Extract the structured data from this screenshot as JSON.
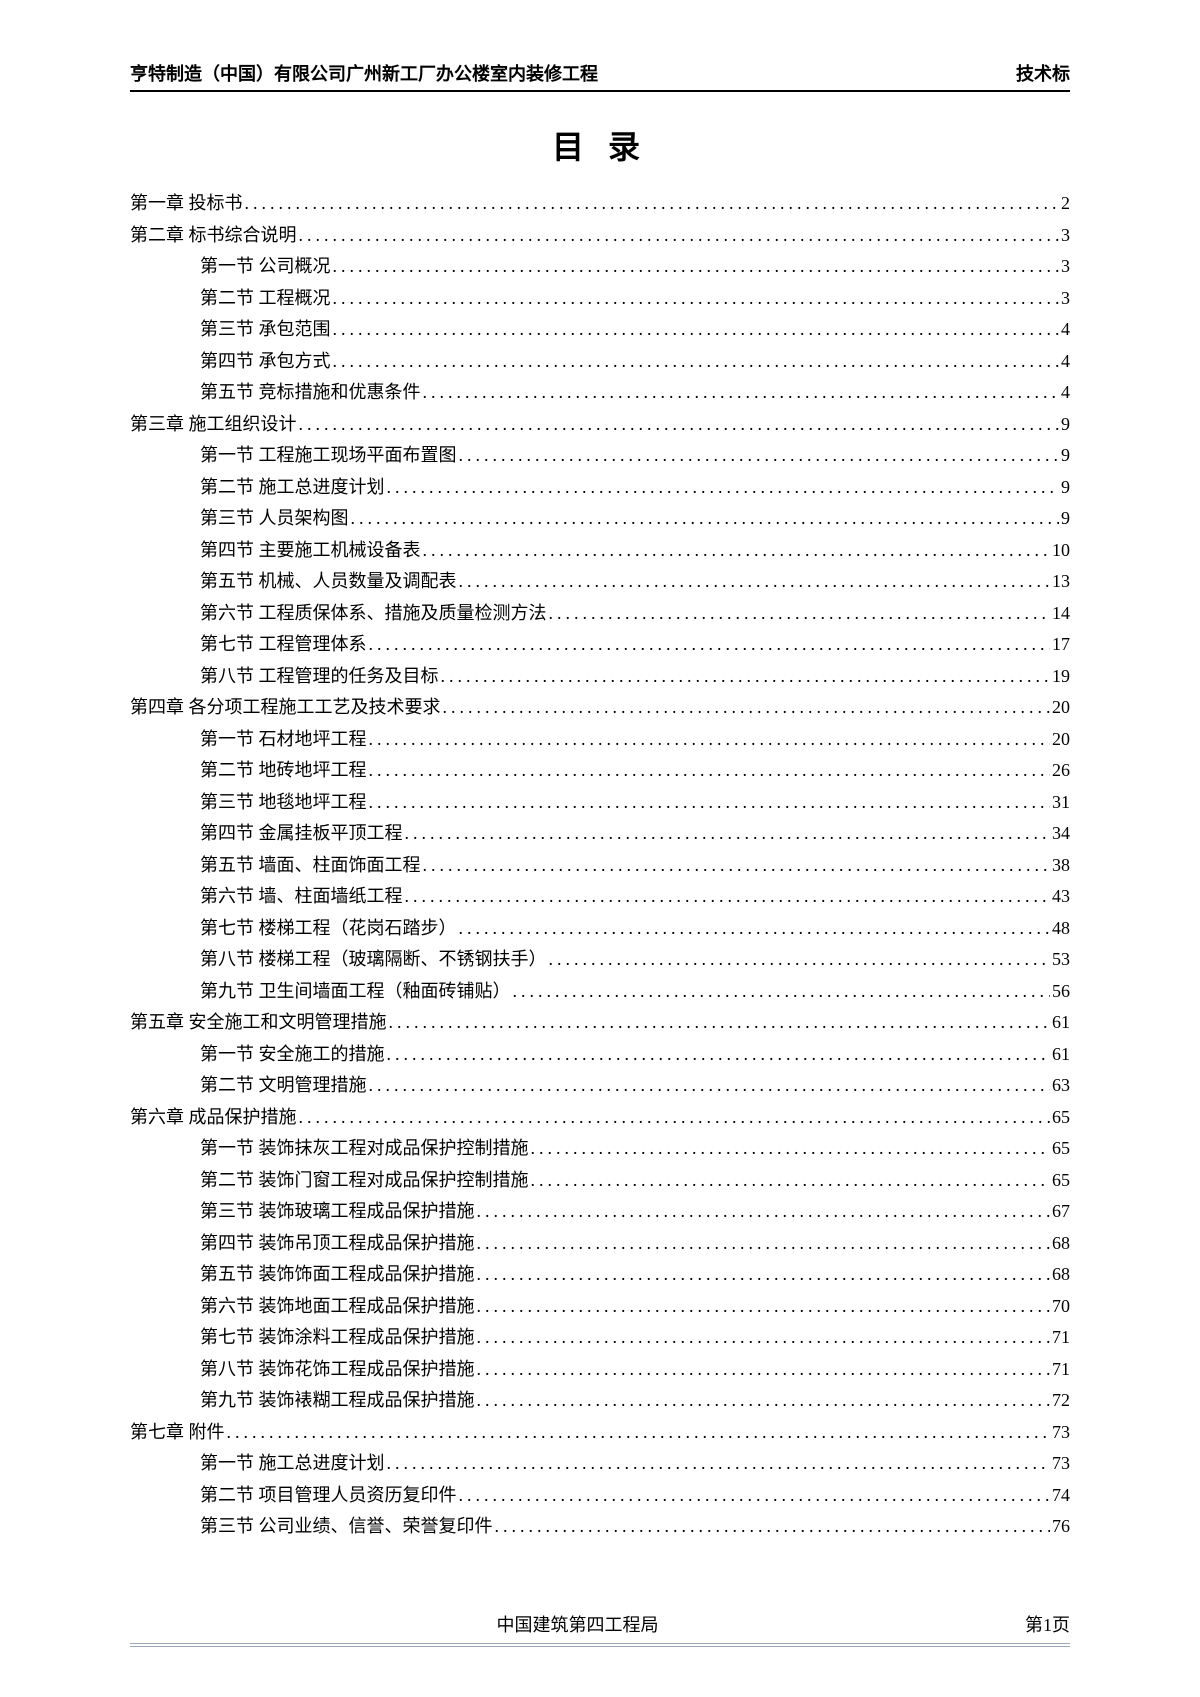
{
  "header": {
    "left": "亨特制造（中国）有限公司广州新工厂办公楼室内装修工程",
    "right": "技术标"
  },
  "title": "目 录",
  "toc": [
    {
      "level": 1,
      "label": "第一章 投标书",
      "page": "2"
    },
    {
      "level": 1,
      "label": "第二章 标书综合说明",
      "page": "3"
    },
    {
      "level": 2,
      "label": "第一节 公司概况",
      "page": "3"
    },
    {
      "level": 2,
      "label": "第二节 工程概况",
      "page": "3"
    },
    {
      "level": 2,
      "label": "第三节 承包范围",
      "page": "4"
    },
    {
      "level": 2,
      "label": "第四节 承包方式",
      "page": "4"
    },
    {
      "level": 2,
      "label": "第五节 竞标措施和优惠条件",
      "page": "4"
    },
    {
      "level": 1,
      "label": "第三章 施工组织设计",
      "page": "9"
    },
    {
      "level": 2,
      "label": "第一节 工程施工现场平面布置图",
      "page": "9"
    },
    {
      "level": 2,
      "label": "第二节 施工总进度计划",
      "page": "9"
    },
    {
      "level": 2,
      "label": "第三节 人员架构图",
      "page": "9"
    },
    {
      "level": 2,
      "label": "第四节 主要施工机械设备表",
      "page": "10"
    },
    {
      "level": 2,
      "label": "第五节 机械、人员数量及调配表",
      "page": "13"
    },
    {
      "level": 2,
      "label": "第六节 工程质保体系、措施及质量检测方法",
      "page": "14"
    },
    {
      "level": 2,
      "label": "第七节 工程管理体系",
      "page": "17"
    },
    {
      "level": 2,
      "label": "第八节 工程管理的任务及目标",
      "page": "19"
    },
    {
      "level": 1,
      "label": "第四章 各分项工程施工工艺及技术要求",
      "page": "20"
    },
    {
      "level": 2,
      "label": "第一节 石材地坪工程",
      "page": "20"
    },
    {
      "level": 2,
      "label": "第二节 地砖地坪工程",
      "page": "26"
    },
    {
      "level": 2,
      "label": "第三节 地毯地坪工程",
      "page": "31"
    },
    {
      "level": 2,
      "label": "第四节 金属挂板平顶工程",
      "page": "34"
    },
    {
      "level": 2,
      "label": "第五节 墙面、柱面饰面工程",
      "page": "38"
    },
    {
      "level": 2,
      "label": "第六节 墙、柱面墙纸工程",
      "page": "43"
    },
    {
      "level": 2,
      "label": "第七节 楼梯工程（花岗石踏步）",
      "page": "48"
    },
    {
      "level": 2,
      "label": "第八节 楼梯工程（玻璃隔断、不锈钢扶手）",
      "page": "53"
    },
    {
      "level": 2,
      "label": "第九节 卫生间墙面工程（釉面砖铺贴）",
      "page": "56"
    },
    {
      "level": 1,
      "label": "第五章 安全施工和文明管理措施",
      "page": "61"
    },
    {
      "level": 2,
      "label": "第一节 安全施工的措施",
      "page": "61"
    },
    {
      "level": 2,
      "label": "第二节 文明管理措施",
      "page": "63"
    },
    {
      "level": 1,
      "label": "第六章 成品保护措施",
      "page": "65"
    },
    {
      "level": 2,
      "label": "第一节 装饰抹灰工程对成品保护控制措施",
      "page": "65"
    },
    {
      "level": 2,
      "label": "第二节 装饰门窗工程对成品保护控制措施",
      "page": "65"
    },
    {
      "level": 2,
      "label": "第三节 装饰玻璃工程成品保护措施",
      "page": "67"
    },
    {
      "level": 2,
      "label": "第四节 装饰吊顶工程成品保护措施",
      "page": "68"
    },
    {
      "level": 2,
      "label": "第五节 装饰饰面工程成品保护措施",
      "page": "68"
    },
    {
      "level": 2,
      "label": "第六节 装饰地面工程成品保护措施",
      "page": "70"
    },
    {
      "level": 2,
      "label": "第七节 装饰涂料工程成品保护措施",
      "page": "71"
    },
    {
      "level": 2,
      "label": "第八节 装饰花饰工程成品保护措施",
      "page": "71"
    },
    {
      "level": 2,
      "label": "第九节 装饰裱糊工程成品保护措施",
      "page": "72"
    },
    {
      "level": 1,
      "label": "第七章 附件",
      "page": "73"
    },
    {
      "level": 2,
      "label": "第一节 施工总进度计划",
      "page": "73"
    },
    {
      "level": 2,
      "label": "第二节 项目管理人员资历复印件",
      "page": "74"
    },
    {
      "level": 2,
      "label": "第三节 公司业绩、信誉、荣誉复印件",
      "page": "76"
    }
  ],
  "footer": {
    "center": "中国建筑第四工程局",
    "right": "第1页"
  }
}
